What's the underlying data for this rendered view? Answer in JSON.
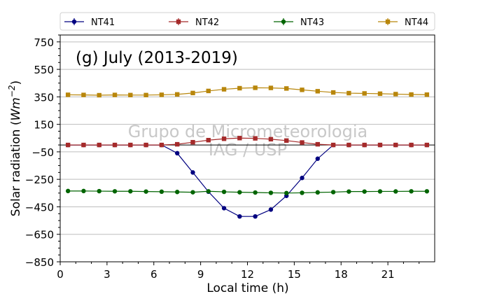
{
  "chart_data": {
    "type": "line",
    "panel_label": "(g) July (2013-2019)",
    "watermark": [
      "Grupo de Micrometeorologia",
      "IAG / USP"
    ],
    "xlabel": "Local time (h)",
    "ylabel_main": "Solar radiation (",
    "ylabel_unit_base": "Wm",
    "ylabel_unit_exp": "−2",
    "ylabel_close": ")",
    "xlim": [
      0,
      24
    ],
    "ylim": [
      -850,
      800
    ],
    "xticks": [
      0,
      3,
      6,
      9,
      12,
      15,
      18,
      21
    ],
    "xtick_labels": [
      "0",
      "3",
      "6",
      "9",
      "12",
      "15",
      "18",
      "21"
    ],
    "yticks": [
      750,
      550,
      350,
      150,
      -50,
      -250,
      -450,
      -650,
      -850
    ],
    "ytick_labels": [
      "750",
      "550",
      "350",
      "150",
      "−50",
      "−250",
      "−450",
      "−650",
      "−850"
    ],
    "grid": true,
    "zero_line": 0,
    "legend_position": "top",
    "x": [
      0.5,
      1.5,
      2.5,
      3.5,
      4.5,
      5.5,
      6.5,
      7.5,
      8.5,
      9.5,
      10.5,
      11.5,
      12.5,
      13.5,
      14.5,
      15.5,
      16.5,
      17.5,
      18.5,
      19.5,
      20.5,
      21.5,
      22.5,
      23.5
    ],
    "series": [
      {
        "name": "NT41",
        "color": "#000080",
        "marker": "circle",
        "values": [
          0,
          0,
          0,
          0,
          0,
          0,
          0,
          -60,
          -200,
          -340,
          -460,
          -520,
          -520,
          -470,
          -370,
          -240,
          -100,
          0,
          0,
          0,
          0,
          0,
          0,
          0
        ]
      },
      {
        "name": "NT42",
        "color": "#a52a2a",
        "marker": "square",
        "values": [
          0,
          0,
          0,
          0,
          0,
          0,
          0,
          5,
          20,
          35,
          45,
          50,
          48,
          42,
          32,
          18,
          5,
          0,
          0,
          0,
          0,
          0,
          0,
          0
        ]
      },
      {
        "name": "NT43",
        "color": "#006400",
        "marker": "circle",
        "values": [
          -335,
          -335,
          -336,
          -337,
          -337,
          -339,
          -340,
          -342,
          -344,
          -337,
          -341,
          -344,
          -346,
          -348,
          -350,
          -348,
          -345,
          -343,
          -339,
          -339,
          -338,
          -338,
          -337,
          -337
        ]
      },
      {
        "name": "NT44",
        "color": "#b8860b",
        "marker": "square",
        "values": [
          365,
          364,
          362,
          364,
          363,
          363,
          365,
          368,
          378,
          393,
          405,
          413,
          416,
          415,
          411,
          401,
          391,
          382,
          377,
          375,
          373,
          370,
          367,
          366
        ]
      }
    ]
  }
}
